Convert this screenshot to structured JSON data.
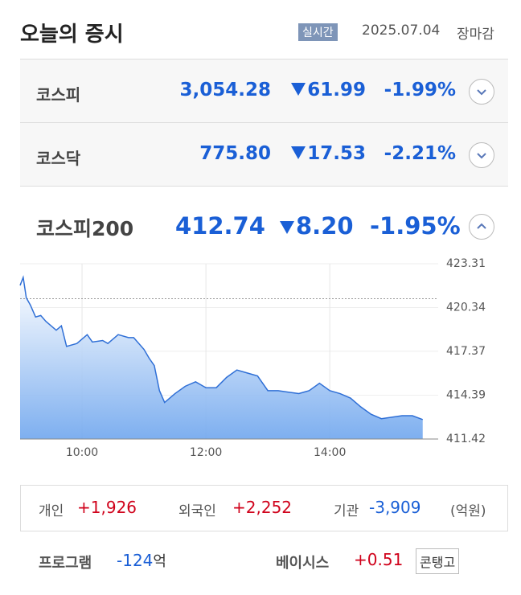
{
  "header": {
    "title": "오늘의 증시",
    "badge": "실시간",
    "date": "2025.07.04",
    "status": "장마감"
  },
  "indices": [
    {
      "name": "코스피",
      "value": "3,054.28",
      "change": "61.99",
      "rate": "-1.99%"
    },
    {
      "name": "코스닥",
      "value": "775.80",
      "change": "17.53",
      "rate": "-2.21%"
    }
  ],
  "kospi200": {
    "name": "코스피200",
    "value": "412.74",
    "change": "8.20",
    "rate": "-1.95%"
  },
  "chart_data": {
    "type": "line",
    "color": "#2f6fd6",
    "fill_color": "#6fa6ee",
    "baseline": 420.94,
    "x": [
      "09:00",
      "09:03",
      "09:06",
      "09:10",
      "09:15",
      "09:20",
      "09:25",
      "09:30",
      "09:35",
      "09:40",
      "09:45",
      "09:55",
      "10:05",
      "10:10",
      "10:20",
      "10:25",
      "10:35",
      "10:45",
      "10:50",
      "11:00",
      "11:05",
      "11:10",
      "11:15",
      "11:20",
      "11:30",
      "11:40",
      "11:50",
      "12:00",
      "12:10",
      "12:20",
      "12:30",
      "12:40",
      "12:50",
      "13:00",
      "13:10",
      "13:20",
      "13:30",
      "13:40",
      "13:50",
      "14:00",
      "14:10",
      "14:20",
      "14:30",
      "14:40",
      "14:50",
      "15:00",
      "15:10",
      "15:20",
      "15:30"
    ],
    "values": [
      421.84,
      422.38,
      421.0,
      420.5,
      419.7,
      419.8,
      419.4,
      419.1,
      418.8,
      419.1,
      417.7,
      417.9,
      418.5,
      418.0,
      418.1,
      417.9,
      418.5,
      418.3,
      418.3,
      417.5,
      416.9,
      416.4,
      414.7,
      413.9,
      414.5,
      415.0,
      415.3,
      414.9,
      414.9,
      415.6,
      416.1,
      415.9,
      415.7,
      414.7,
      414.7,
      414.6,
      414.5,
      414.7,
      415.2,
      414.7,
      414.5,
      414.2,
      413.6,
      413.1,
      412.8,
      412.9,
      413.0,
      413.0,
      412.74
    ],
    "xlim": [
      "09:00",
      "15:45"
    ],
    "xticks": [
      "10:00",
      "12:00",
      "14:00"
    ],
    "ylim": [
      411.42,
      423.31
    ],
    "yticks": [
      411.42,
      414.39,
      417.37,
      420.34,
      423.31
    ],
    "grid": true
  },
  "investors": {
    "items": [
      {
        "name": "개인",
        "value": "+1,926"
      },
      {
        "name": "외국인",
        "value": "+2,252"
      },
      {
        "name": "기관",
        "value": "-3,909"
      }
    ],
    "unit": "(억원)"
  },
  "program": {
    "label": "프로그램",
    "value": "-124",
    "unit": "억",
    "basis_label": "베이시스",
    "basis_value": "+0.51",
    "basis_status": "콘탱고"
  }
}
